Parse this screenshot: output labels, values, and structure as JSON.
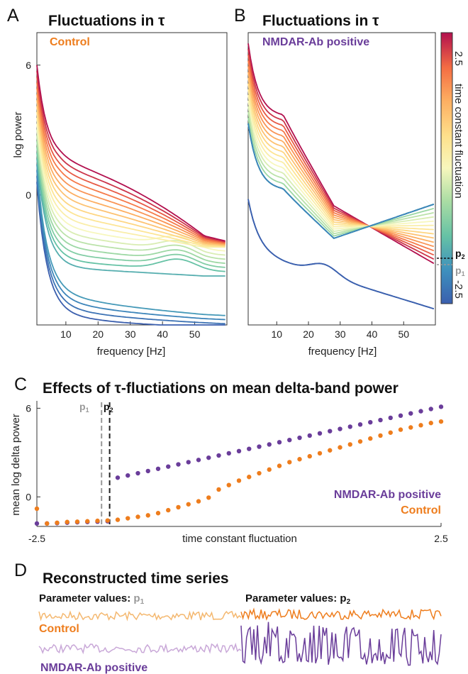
{
  "panels": {
    "A": {
      "letter": "A",
      "title": "Fluctuations in τ",
      "legend": "Control",
      "ylabel": "log power",
      "xlabel": "frequency [Hz]"
    },
    "B": {
      "letter": "B",
      "title": "Fluctuations in τ",
      "legend": "NMDAR-Ab positive",
      "xlabel": "frequency [Hz]"
    },
    "C": {
      "letter": "C",
      "title": "Effects of τ-fluctiations on mean delta-band power",
      "ylabel": "mean log delta power",
      "xlabel": "time constant fluctuation",
      "legend": [
        "NMDAR-Ab positive",
        "Control"
      ]
    },
    "D": {
      "letter": "D",
      "title": "Reconstructed time series",
      "param_p1_prefix": "Parameter values: ",
      "param_p2_prefix": "Parameter values: ",
      "legend": [
        "Control",
        "NMDAR-Ab positive"
      ]
    }
  },
  "colorbar": {
    "label": "time constant fluctuation",
    "max": "2.5",
    "min": "-2.5",
    "p2": "p",
    "p1": "p",
    "sub2": "2",
    "sub1": "1"
  },
  "markers": {
    "p1": "p",
    "p2": "p",
    "sub1": "1",
    "sub2": "2"
  },
  "colors": {
    "control": "#ee7d1d",
    "nmdar": "#6a3d9a",
    "p1_line": "#999999",
    "p2_line": "#222222"
  },
  "chart_data": [
    {
      "type": "line",
      "title": "Fluctuations in τ",
      "subtitle": "Control",
      "xlabel": "frequency [Hz]",
      "ylabel": "log power",
      "x_ticks": [
        10,
        20,
        30,
        40,
        50
      ],
      "y_ticks": [
        0,
        6
      ],
      "xlim": [
        1,
        60
      ],
      "ylim": [
        -6,
        7.5
      ],
      "color_scale": "Spectral (blue -2.5 to red 2.5)",
      "series_by_tau": [
        -2.5,
        -2.25,
        -2.0,
        -1.75,
        -1.5,
        -1.25,
        -1.0,
        -0.75,
        -0.5,
        -0.25,
        0.0,
        0.25,
        0.5,
        0.75,
        1.0,
        1.25,
        1.5,
        1.75,
        2.0,
        2.25,
        2.5
      ],
      "sample_curves": [
        {
          "tau": 2.5,
          "x": [
            1,
            5,
            10,
            20,
            30,
            40,
            50,
            60
          ],
          "y": [
            6.0,
            3.0,
            1.6,
            1.2,
            0.6,
            -0.6,
            -1.4,
            -2.0
          ]
        },
        {
          "tau": 0.0,
          "x": [
            1,
            5,
            10,
            20,
            30,
            40,
            50,
            60
          ],
          "y": [
            5.4,
            2.0,
            0.9,
            0.3,
            -0.1,
            -0.2,
            -0.3,
            -0.3
          ]
        },
        {
          "tau": -2.5,
          "x": [
            1,
            5,
            10,
            20,
            30,
            40,
            50,
            60
          ],
          "y": [
            0.6,
            -2.6,
            -3.3,
            -3.8,
            -4.0,
            -4.2,
            -4.3,
            -4.5
          ]
        }
      ]
    },
    {
      "type": "line",
      "title": "Fluctuations in τ",
      "subtitle": "NMDAR-Ab positive",
      "xlabel": "frequency [Hz]",
      "x_ticks": [
        10,
        20,
        30,
        40,
        50
      ],
      "xlim": [
        1,
        60
      ],
      "ylim": [
        -6,
        7.5
      ],
      "sample_curves": [
        {
          "tau": 2.5,
          "x": [
            1,
            5,
            10,
            20,
            30,
            40,
            50,
            60
          ],
          "y": [
            7.0,
            3.8,
            3.4,
            0.8,
            -0.4,
            -1.6,
            -2.6,
            -3.2
          ]
        },
        {
          "tau": -0.75,
          "x": [
            1,
            5,
            10,
            20,
            30,
            40,
            50,
            60
          ],
          "y": [
            3.3,
            1.2,
            0.8,
            0.1,
            -2.0,
            -1.0,
            -0.6,
            -0.4
          ]
        },
        {
          "tau": -2.5,
          "x": [
            1,
            5,
            10,
            20,
            30,
            40,
            50,
            60
          ],
          "y": [
            -0.2,
            -2.8,
            -3.6,
            -4.2,
            -4.6,
            -5.2,
            -5.5,
            -5.7
          ]
        }
      ]
    },
    {
      "type": "scatter",
      "title": "Effects of τ-fluctiations on mean delta-band power",
      "xlabel": "time constant fluctuation",
      "ylabel": "mean log delta power",
      "x_ticks": [
        -2.5,
        2.5
      ],
      "y_ticks": [
        0,
        6
      ],
      "xlim": [
        -2.5,
        2.5
      ],
      "ylim": [
        -2.0,
        6.5
      ],
      "p1": -1.7,
      "p2": -1.6,
      "series": [
        {
          "name": "NMDAR-Ab positive",
          "x": [
            -2.5,
            -2.375,
            -2.25,
            -2.125,
            -2.0,
            -1.875,
            -1.75,
            -1.625,
            -1.5,
            -1.375,
            -1.25,
            -1.125,
            -1.0,
            -0.875,
            -0.75,
            -0.625,
            -0.5,
            -0.375,
            -0.25,
            -0.125,
            0.0,
            0.125,
            0.25,
            0.375,
            0.5,
            0.625,
            0.75,
            0.875,
            1.0,
            1.125,
            1.25,
            1.375,
            1.5,
            1.625,
            1.75,
            1.875,
            2.0,
            2.125,
            2.25,
            2.375,
            2.5
          ],
          "y": [
            -1.8,
            -1.8,
            -1.78,
            -1.75,
            -1.72,
            -1.7,
            -1.68,
            -1.65,
            1.3,
            1.45,
            1.6,
            1.75,
            1.9,
            2.05,
            2.2,
            2.35,
            2.5,
            2.65,
            2.8,
            2.95,
            3.1,
            3.25,
            3.4,
            3.55,
            3.7,
            3.85,
            4.0,
            4.15,
            4.3,
            4.45,
            4.6,
            4.75,
            4.9,
            5.05,
            5.2,
            5.35,
            5.5,
            5.65,
            5.8,
            5.95,
            6.1
          ]
        },
        {
          "name": "Control",
          "x": [
            -2.5,
            -2.375,
            -2.25,
            -2.125,
            -2.0,
            -1.875,
            -1.75,
            -1.625,
            -1.5,
            -1.375,
            -1.25,
            -1.125,
            -1.0,
            -0.875,
            -0.75,
            -0.625,
            -0.5,
            -0.375,
            -0.25,
            -0.125,
            0.0,
            0.125,
            0.25,
            0.375,
            0.5,
            0.625,
            0.75,
            0.875,
            1.0,
            1.125,
            1.25,
            1.375,
            1.5,
            1.625,
            1.75,
            1.875,
            2.0,
            2.125,
            2.25,
            2.375,
            2.5
          ],
          "y": [
            -0.8,
            -1.8,
            -1.75,
            -1.7,
            -1.68,
            -1.65,
            -1.62,
            -1.6,
            -1.55,
            -1.45,
            -1.35,
            -1.25,
            -1.1,
            -0.9,
            -0.7,
            -0.5,
            -0.3,
            -0.05,
            0.5,
            0.8,
            1.1,
            1.35,
            1.6,
            1.85,
            2.1,
            2.35,
            2.55,
            2.75,
            2.95,
            3.15,
            3.35,
            3.55,
            3.75,
            3.95,
            4.15,
            4.35,
            4.55,
            4.7,
            4.85,
            5.0,
            5.1
          ]
        }
      ]
    }
  ]
}
